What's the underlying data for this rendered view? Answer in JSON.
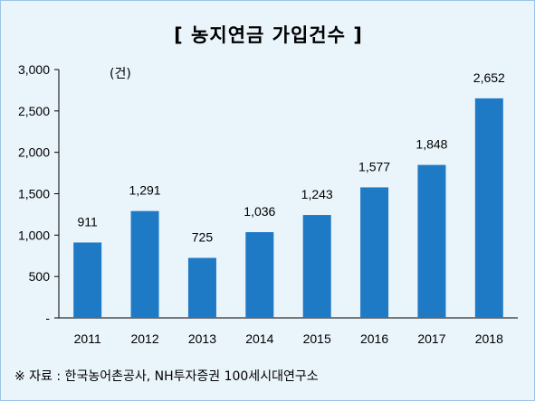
{
  "title": "[ 농지연금 가입건수 ]",
  "unit": "(건)",
  "source": "※ 자료 : 한국농어촌공사, NH투자증권 100세시대연구소",
  "chart_data": {
    "type": "bar",
    "title": "[ 농지연금 가입건수 ]",
    "ylabel": "(건)",
    "categories": [
      "2011",
      "2012",
      "2013",
      "2014",
      "2015",
      "2016",
      "2017",
      "2018"
    ],
    "values": [
      911,
      1291,
      725,
      1036,
      1243,
      1577,
      1848,
      2652
    ],
    "value_labels": [
      "911",
      "1,291",
      "725",
      "1,036",
      "1,243",
      "1,577",
      "1,848",
      "2,652"
    ],
    "ylim": [
      0,
      3000
    ],
    "yticks": [
      0,
      500,
      1000,
      1500,
      2000,
      2500,
      3000
    ],
    "ytick_labels": [
      "-",
      "500",
      "1,000",
      "1,500",
      "2,000",
      "2,500",
      "3,000"
    ],
    "bar_color": "#1f7ac6",
    "grid": false
  }
}
